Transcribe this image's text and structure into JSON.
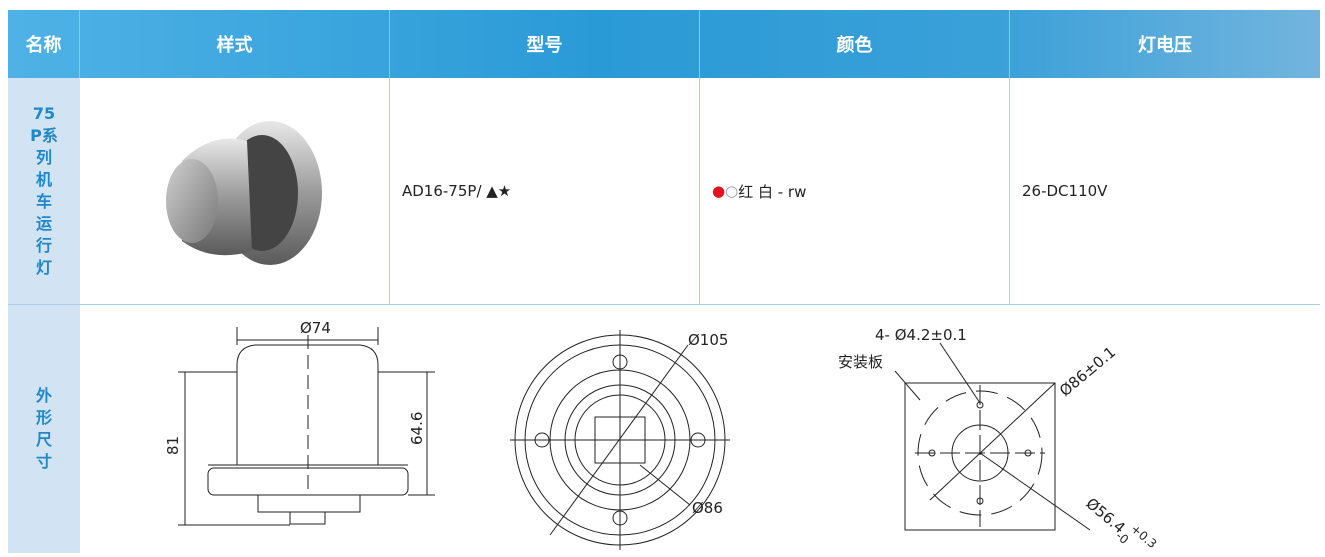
{
  "table": {
    "header": [
      "名称",
      "样式",
      "型号",
      "颜色",
      "灯电压"
    ],
    "rows": [
      {
        "name": "75P系列机车运行灯",
        "model": "AD16-75P/ ▲★",
        "color": {
          "symbols": [
            "●",
            "○"
          ],
          "text": "红 白 - rw"
        },
        "voltage": "26-DC110V"
      },
      {
        "name": "外形尺寸",
        "drawings": {
          "side": {
            "width": "Ø74",
            "height": "81",
            "body_height": "64.6"
          },
          "front": {
            "outer": "Ø105",
            "inner": "Ø86"
          },
          "mount": {
            "holes": "4- Ø4.2±0.1",
            "plate": "安装板",
            "hole_circle": "Ø86±0.1",
            "cutout": "Ø56.4",
            "cutout_upper": "+0.3",
            "cutout_lower": "-0"
          }
        }
      }
    ]
  }
}
